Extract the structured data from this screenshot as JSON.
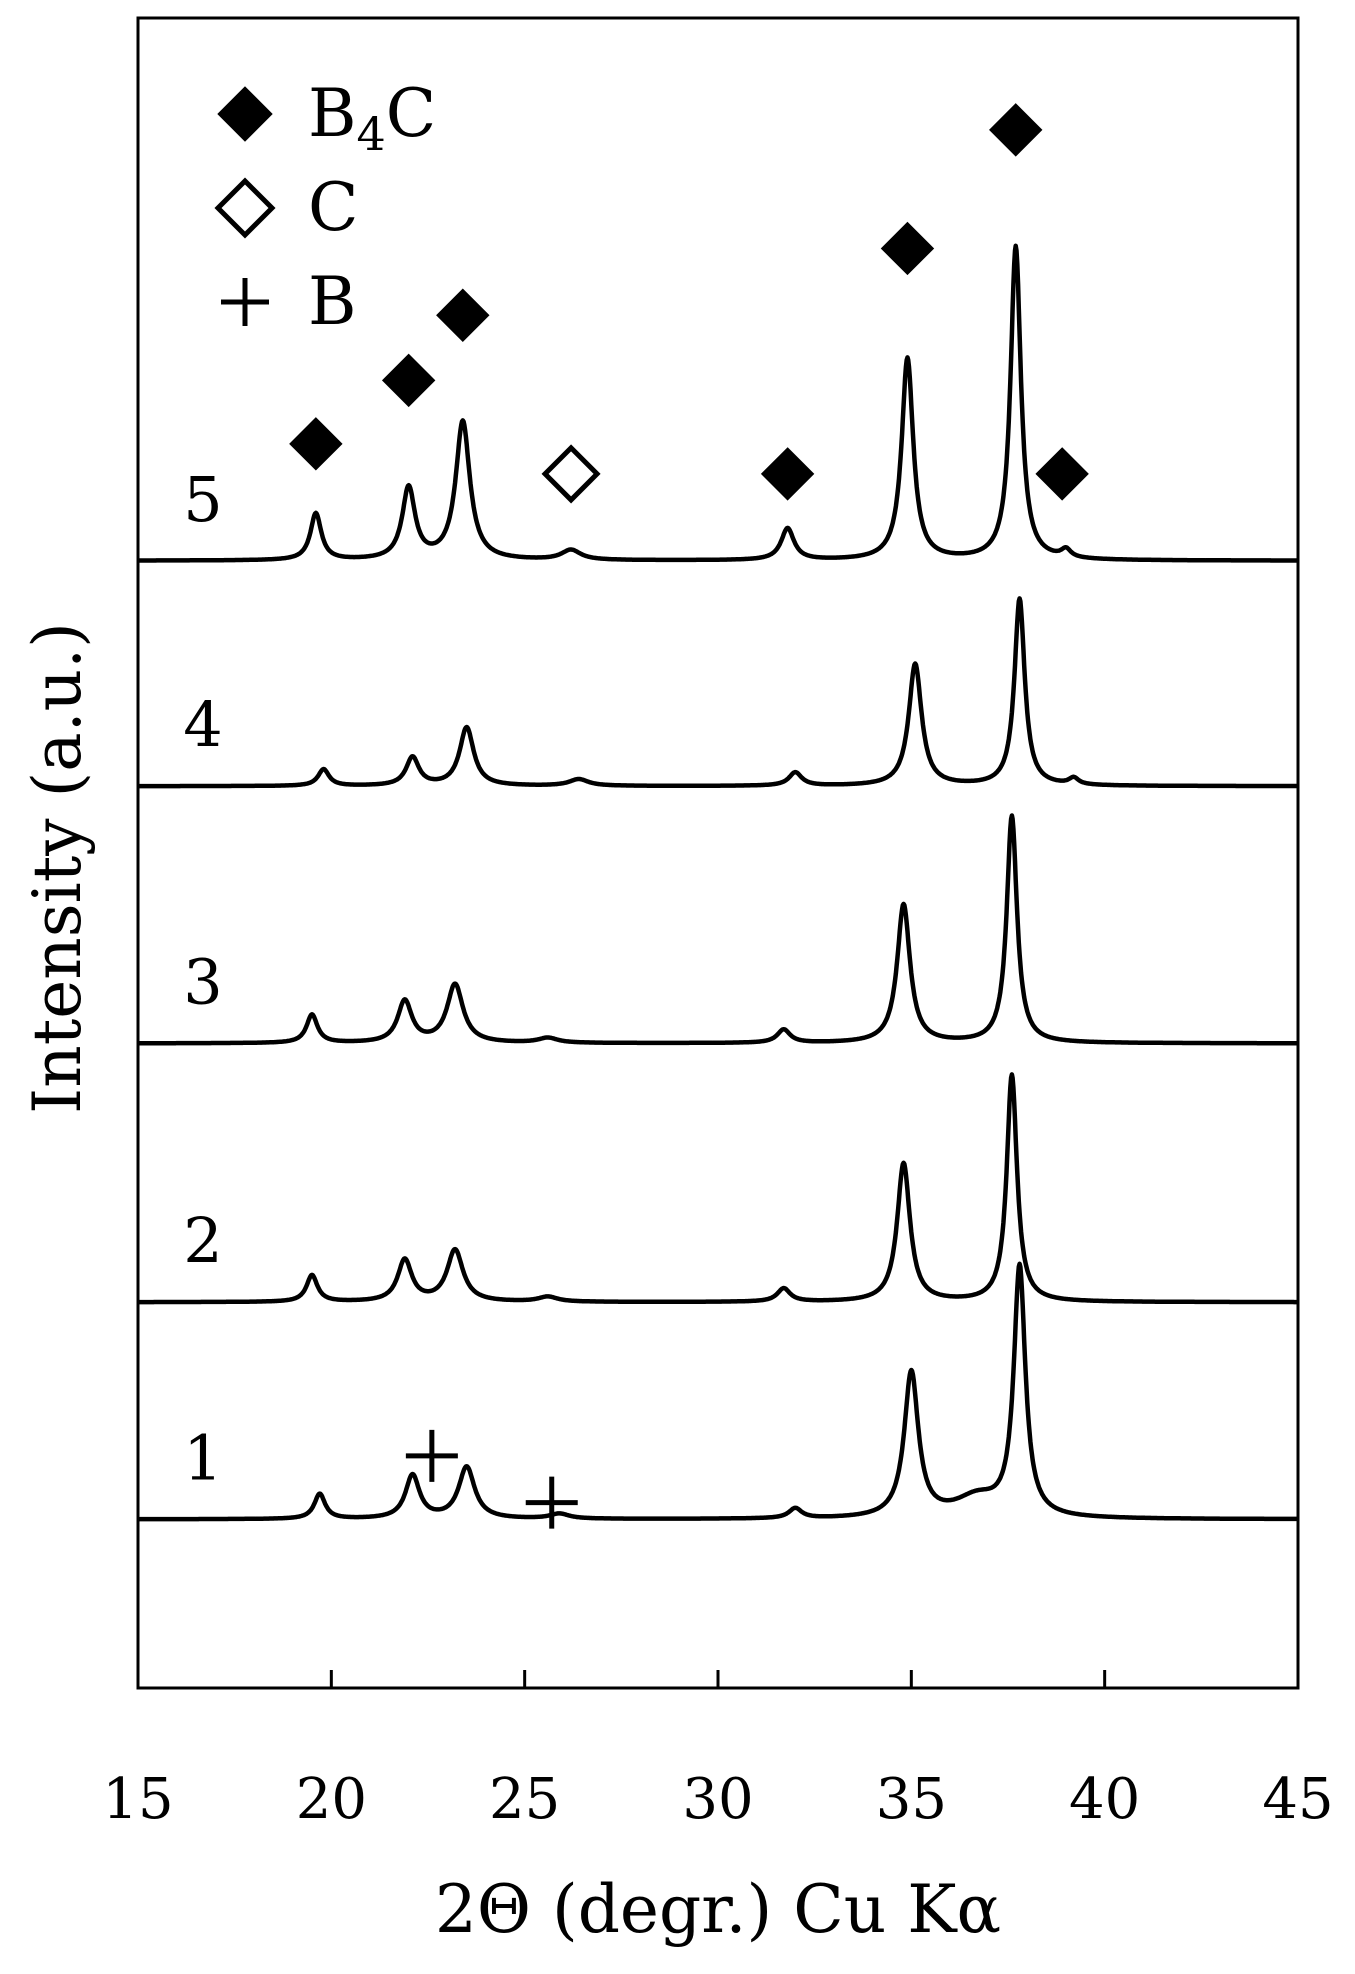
{
  "chart_data": {
    "type": "line",
    "title": "",
    "xlabel": "2Θ (degr.) Cu Kα",
    "ylabel": "Intensity (a.u.)",
    "xlim": [
      15,
      45
    ],
    "ylim": [
      0,
      1
    ],
    "xticks": [
      "15",
      "20",
      "25",
      "30",
      "35",
      "40",
      "45"
    ],
    "grid": false,
    "legend_position": "top-left",
    "legend": [
      {
        "label": "B4C",
        "marker": "filled-diamond"
      },
      {
        "label": "C",
        "marker": "open-diamond"
      },
      {
        "label": "B",
        "marker": "plus"
      }
    ],
    "series": [
      {
        "label": "1",
        "baseline": 0.101,
        "peaks": [
          [
            19.7,
            0.015,
            0.17
          ],
          [
            22.1,
            0.026,
            0.22
          ],
          [
            23.5,
            0.031,
            0.25
          ],
          [
            25.9,
            0.003,
            0.3
          ],
          [
            32.0,
            0.006,
            0.2
          ],
          [
            35.0,
            0.087,
            0.22
          ],
          [
            37.8,
            0.149,
            0.18
          ],
          [
            36.7,
            0.012,
            0.7
          ]
        ]
      },
      {
        "label": "2",
        "baseline": 0.231,
        "peaks": [
          [
            19.5,
            0.016,
            0.17
          ],
          [
            21.9,
            0.025,
            0.22
          ],
          [
            23.2,
            0.031,
            0.25
          ],
          [
            25.6,
            0.003,
            0.3
          ],
          [
            31.7,
            0.008,
            0.2
          ],
          [
            34.8,
            0.083,
            0.2
          ],
          [
            37.6,
            0.136,
            0.16
          ]
        ]
      },
      {
        "label": "3",
        "baseline": 0.386,
        "peaks": [
          [
            19.5,
            0.017,
            0.17
          ],
          [
            21.9,
            0.025,
            0.22
          ],
          [
            23.2,
            0.035,
            0.25
          ],
          [
            25.6,
            0.003,
            0.3
          ],
          [
            31.7,
            0.008,
            0.2
          ],
          [
            34.8,
            0.083,
            0.2
          ],
          [
            37.6,
            0.136,
            0.16
          ]
        ]
      },
      {
        "label": "4",
        "baseline": 0.54,
        "peaks": [
          [
            19.8,
            0.01,
            0.17
          ],
          [
            22.1,
            0.017,
            0.2
          ],
          [
            23.5,
            0.035,
            0.22
          ],
          [
            26.4,
            0.004,
            0.3
          ],
          [
            32.0,
            0.008,
            0.2
          ],
          [
            35.1,
            0.073,
            0.2
          ],
          [
            37.8,
            0.112,
            0.16
          ],
          [
            39.2,
            0.004,
            0.15
          ]
        ]
      },
      {
        "label": "5",
        "baseline": 0.675,
        "peaks": [
          [
            19.6,
            0.028,
            0.17
          ],
          [
            22.0,
            0.043,
            0.2
          ],
          [
            23.4,
            0.083,
            0.22
          ],
          [
            26.2,
            0.006,
            0.3
          ],
          [
            31.8,
            0.019,
            0.2
          ],
          [
            34.9,
            0.121,
            0.18
          ],
          [
            37.7,
            0.188,
            0.16
          ],
          [
            39.0,
            0.005,
            0.15
          ]
        ]
      }
    ],
    "annotations": [
      {
        "marker": "filled-diamond",
        "x": 19.6,
        "y": 0.745
      },
      {
        "marker": "filled-diamond",
        "x": 22.0,
        "y": 0.783
      },
      {
        "marker": "filled-diamond",
        "x": 23.4,
        "y": 0.822
      },
      {
        "marker": "open-diamond",
        "x": 26.2,
        "y": 0.727
      },
      {
        "marker": "filled-diamond",
        "x": 31.8,
        "y": 0.727
      },
      {
        "marker": "filled-diamond",
        "x": 34.9,
        "y": 0.862
      },
      {
        "marker": "filled-diamond",
        "x": 37.7,
        "y": 0.933
      },
      {
        "marker": "filled-diamond",
        "x": 38.9,
        "y": 0.727
      },
      {
        "marker": "plus",
        "x": 22.6,
        "y": 0.139
      },
      {
        "marker": "plus",
        "x": 25.7,
        "y": 0.111
      }
    ]
  }
}
